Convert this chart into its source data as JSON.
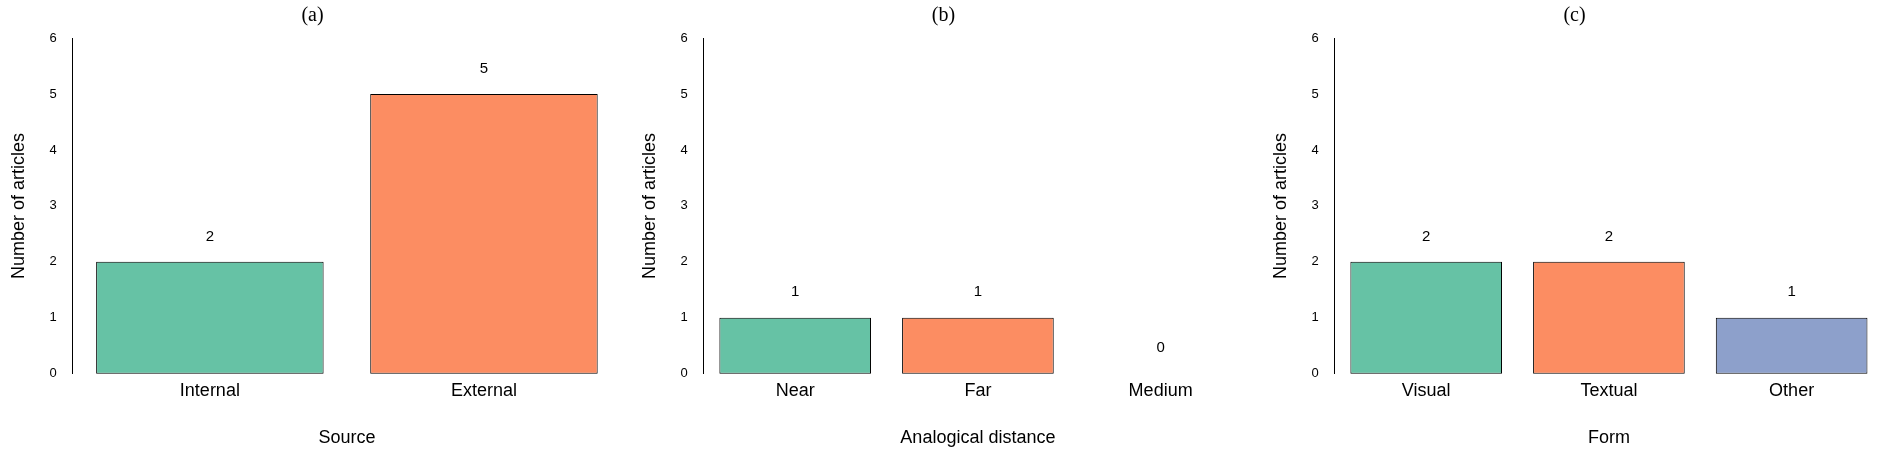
{
  "chart_data": [
    {
      "type": "bar",
      "title": "(a)",
      "xlabel": "Source",
      "ylabel": "Number of articles",
      "categories": [
        "Internal",
        "External"
      ],
      "values": [
        2,
        5
      ],
      "colors": [
        "#66c2a5",
        "#fc8d62"
      ],
      "ylim": [
        0,
        6
      ],
      "yticks": [
        0,
        1,
        2,
        3,
        4,
        5,
        6
      ],
      "data_labels": true
    },
    {
      "type": "bar",
      "title": "(b)",
      "xlabel": "Analogical distance",
      "ylabel": "Number of articles",
      "categories": [
        "Near",
        "Far",
        "Medium"
      ],
      "values": [
        1,
        1,
        0
      ],
      "colors": [
        "#66c2a5",
        "#fc8d62",
        "#8da0cb"
      ],
      "ylim": [
        0,
        6
      ],
      "yticks": [
        0,
        1,
        2,
        3,
        4,
        5,
        6
      ],
      "data_labels": true
    },
    {
      "type": "bar",
      "title": "(c)",
      "xlabel": "Form",
      "ylabel": "Number of articles",
      "categories": [
        "Visual",
        "Textual",
        "Other"
      ],
      "values": [
        2,
        2,
        1
      ],
      "colors": [
        "#66c2a5",
        "#fc8d62",
        "#8da0cb"
      ],
      "ylim": [
        0,
        6
      ],
      "yticks": [
        0,
        1,
        2,
        3,
        4,
        5,
        6
      ],
      "data_labels": true
    }
  ]
}
